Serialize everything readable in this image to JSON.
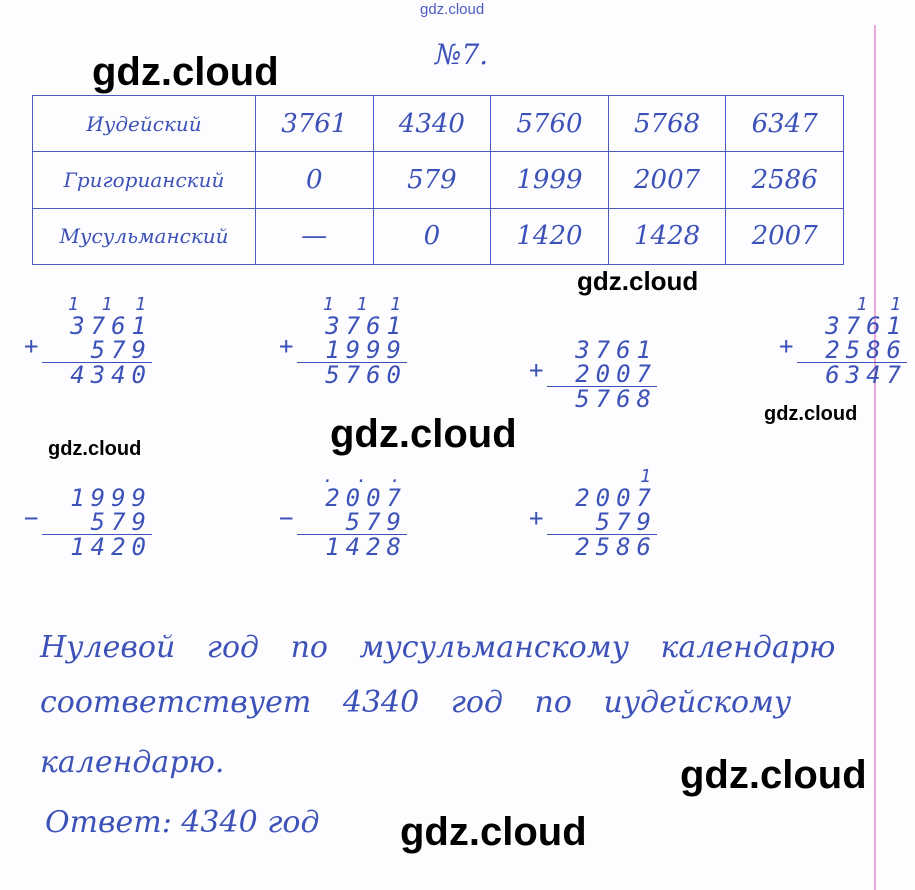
{
  "watermarks": [
    "gdz.cloud",
    "gdz.cloud",
    "gdz.cloud",
    "gdz.cloud",
    "gdz.cloud",
    "gdz.cloud",
    "gdz.cloud",
    "gdz.cloud"
  ],
  "task_number": "№7.",
  "table": {
    "rows": [
      {
        "label": "Иудейский",
        "values": [
          "3761",
          "4340",
          "5760",
          "5768",
          "6347"
        ]
      },
      {
        "label": "Григорианский",
        "values": [
          "0",
          "579",
          "1999",
          "2007",
          "2586"
        ]
      },
      {
        "label": "Мусульманский",
        "values": [
          "—",
          "0",
          "1420",
          "1428",
          "2007"
        ]
      }
    ]
  },
  "calculations": [
    {
      "carry": "1 1 1",
      "op": "+",
      "a": "3761",
      "b": "579",
      "result": "4340"
    },
    {
      "carry": "1 1 1",
      "op": "+",
      "a": "3761",
      "b": "1999",
      "result": "5760"
    },
    {
      "carry": "",
      "op": "+",
      "a": "3761",
      "b": "2007",
      "result": "5768"
    },
    {
      "carry": "1 1",
      "op": "+",
      "a": "3761",
      "b": "2586",
      "result": "6347"
    },
    {
      "carry": "",
      "op": "−",
      "a": "1999",
      "b": "579",
      "result": "1420"
    },
    {
      "carry": ". . .",
      "op": "−",
      "a": "2007",
      "b": "579",
      "result": "1428"
    },
    {
      "carry": "1",
      "op": "+",
      "a": "2007",
      "b": "579",
      "result": "2586"
    }
  ],
  "text_lines": [
    "Нулевой год по мусульманскому календарю",
    "соответствует 4340 год по иудейскому",
    "календарю."
  ],
  "answer": "Ответ: 4340 год",
  "colors": {
    "ink": "#3d52b8",
    "margin": "#f0a8d8"
  }
}
